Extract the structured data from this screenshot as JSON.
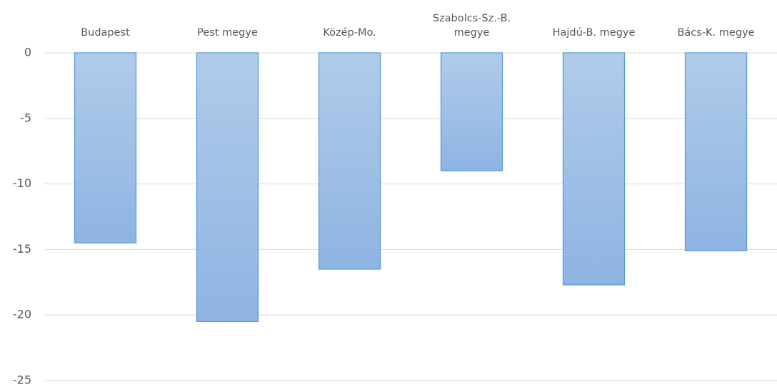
{
  "chart_data": {
    "type": "bar",
    "categories": [
      "Budapest",
      "Pest megye",
      "Közép-Mo.",
      "Szabolcs-Sz.-B. megye",
      "Hajdú-B. megye",
      "Bács-K. megye"
    ],
    "values": [
      -14.5,
      -20.5,
      -16.5,
      -9.0,
      -17.7,
      -15.1
    ],
    "color": "#5b9bd5",
    "ylim": [
      -25,
      0
    ],
    "yticks": [
      0,
      -5,
      -10,
      -15,
      -20,
      -25
    ],
    "grid": true
  }
}
